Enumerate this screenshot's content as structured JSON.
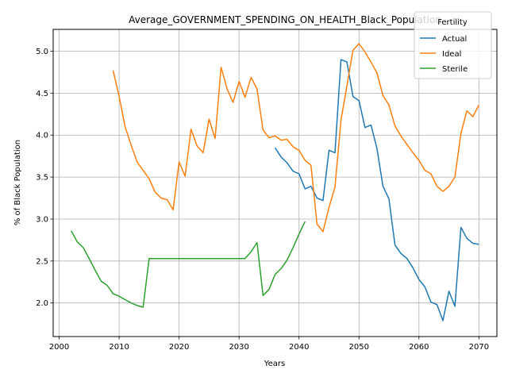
{
  "chart_data": {
    "type": "line",
    "title": "Average_GOVERNMENT_SPENDING_ON_HEALTH_Black_Population",
    "xlabel": "Years",
    "ylabel": "% of Black Population",
    "xlim": [
      1999,
      2073
    ],
    "ylim": [
      1.6,
      5.26
    ],
    "xticks": [
      2000,
      2010,
      2020,
      2030,
      2040,
      2050,
      2060,
      2070
    ],
    "yticks": [
      2.0,
      2.5,
      3.0,
      3.5,
      4.0,
      4.5,
      5.0
    ],
    "ytick_labels": [
      "2.0",
      "2.5",
      "3.0",
      "3.5",
      "4.0",
      "4.5",
      "5.0"
    ],
    "grid": true,
    "legend": {
      "title": "Fertility",
      "position": "top-right"
    },
    "series": [
      {
        "name": "Actual",
        "color": "#1f77b4",
        "x": [
          2036,
          2037,
          2038,
          2039,
          2040,
          2041,
          2042,
          2043,
          2044,
          2045,
          2046,
          2047,
          2048,
          2049,
          2050,
          2051,
          2052,
          2053,
          2054,
          2055,
          2056,
          2057,
          2058,
          2059,
          2060,
          2061,
          2062,
          2063,
          2064,
          2065,
          2066,
          2067,
          2068,
          2069,
          2070
        ],
        "y": [
          3.85,
          3.74,
          3.67,
          3.57,
          3.54,
          3.36,
          3.39,
          3.25,
          3.22,
          3.82,
          3.79,
          4.9,
          4.87,
          4.46,
          4.41,
          4.09,
          4.12,
          3.84,
          3.39,
          3.24,
          2.69,
          2.59,
          2.53,
          2.42,
          2.28,
          2.19,
          2.01,
          1.98,
          1.79,
          2.14,
          1.96,
          2.9,
          2.77,
          2.71,
          2.7
        ]
      },
      {
        "name": "Ideal",
        "color": "#ff7f0e",
        "x": [
          2009,
          2010,
          2011,
          2012,
          2013,
          2014,
          2015,
          2016,
          2017,
          2018,
          2019,
          2020,
          2021,
          2022,
          2023,
          2024,
          2025,
          2026,
          2027,
          2028,
          2029,
          2030,
          2031,
          2032,
          2033,
          2034,
          2035,
          2036,
          2037,
          2038,
          2039,
          2040,
          2041,
          2042,
          2043,
          2044,
          2045,
          2046,
          2047,
          2048,
          2049,
          2050,
          2051,
          2052,
          2053,
          2054,
          2055,
          2056,
          2057,
          2058,
          2059,
          2060,
          2061,
          2062,
          2063,
          2064,
          2065,
          2066,
          2067,
          2068,
          2069,
          2070
        ],
        "y": [
          4.77,
          4.46,
          4.1,
          3.88,
          3.68,
          3.58,
          3.48,
          3.32,
          3.25,
          3.23,
          3.11,
          3.68,
          3.51,
          4.07,
          3.87,
          3.79,
          4.19,
          3.96,
          4.81,
          4.55,
          4.39,
          4.64,
          4.45,
          4.69,
          4.55,
          4.06,
          3.97,
          3.99,
          3.94,
          3.95,
          3.86,
          3.82,
          3.7,
          3.64,
          2.94,
          2.85,
          3.14,
          3.38,
          4.18,
          4.59,
          5.01,
          5.09,
          4.99,
          4.87,
          4.74,
          4.47,
          4.36,
          4.11,
          3.99,
          3.89,
          3.79,
          3.7,
          3.58,
          3.54,
          3.39,
          3.33,
          3.39,
          3.5,
          4.02,
          4.29,
          4.22,
          4.36
        ]
      },
      {
        "name": "Sterile",
        "color": "#2ca02c",
        "x": [
          2002,
          2003,
          2004,
          2005,
          2006,
          2007,
          2008,
          2009,
          2010,
          2011,
          2012,
          2013,
          2014,
          2015,
          2016,
          2017,
          2018,
          2019,
          2020,
          2021,
          2022,
          2023,
          2024,
          2025,
          2026,
          2027,
          2028,
          2029,
          2030,
          2031,
          2032,
          2033,
          2034,
          2035,
          2036,
          2037,
          2038,
          2039,
          2040,
          2041
        ],
        "y": [
          2.86,
          2.73,
          2.66,
          2.53,
          2.39,
          2.26,
          2.21,
          2.11,
          2.08,
          2.04,
          2.0,
          1.97,
          1.95,
          2.53,
          2.53,
          2.53,
          2.53,
          2.53,
          2.53,
          2.53,
          2.53,
          2.53,
          2.53,
          2.53,
          2.53,
          2.53,
          2.53,
          2.53,
          2.53,
          2.53,
          2.61,
          2.72,
          2.09,
          2.16,
          2.34,
          2.41,
          2.51,
          2.66,
          2.82,
          2.97
        ]
      }
    ]
  }
}
